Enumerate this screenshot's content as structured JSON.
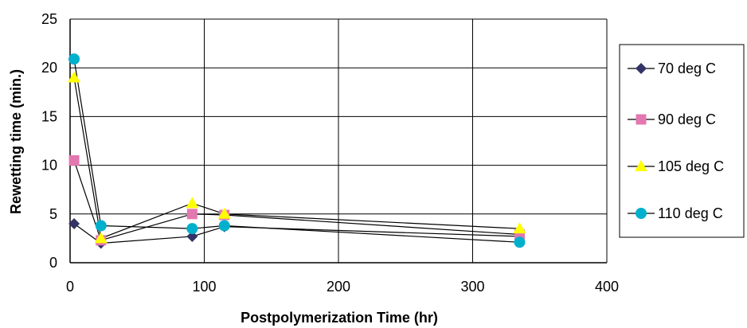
{
  "chart_data": {
    "type": "line",
    "xlabel": "Postpolymerization Time (hr)",
    "ylabel": "Rewetting time (min.)",
    "xlim": [
      0,
      400
    ],
    "ylim": [
      0,
      25
    ],
    "xticks": [
      0,
      100,
      200,
      300,
      400
    ],
    "yticks": [
      0,
      5,
      10,
      15,
      20,
      25
    ],
    "grid": true,
    "legend": "right",
    "series": [
      {
        "name": "70 deg C",
        "marker": "diamond",
        "color": "#333366",
        "x": [
          3,
          23,
          91,
          115,
          335
        ],
        "y": [
          4.0,
          2.0,
          2.7,
          3.7,
          2.7
        ]
      },
      {
        "name": "90 deg C",
        "marker": "square",
        "color": "#e377b0",
        "x": [
          3,
          23,
          91,
          115,
          335
        ],
        "y": [
          10.5,
          2.3,
          5.0,
          4.9,
          2.9
        ]
      },
      {
        "name": "105 deg C",
        "marker": "triangle",
        "color": "#ffff00",
        "x": [
          3,
          23,
          91,
          115,
          335
        ],
        "y": [
          19.0,
          2.5,
          6.1,
          5.0,
          3.5
        ]
      },
      {
        "name": "110 deg C",
        "marker": "circle",
        "color": "#00b0cc",
        "x": [
          3,
          23,
          91,
          115,
          335
        ],
        "y": [
          20.9,
          3.8,
          3.5,
          3.8,
          2.1
        ]
      }
    ]
  }
}
